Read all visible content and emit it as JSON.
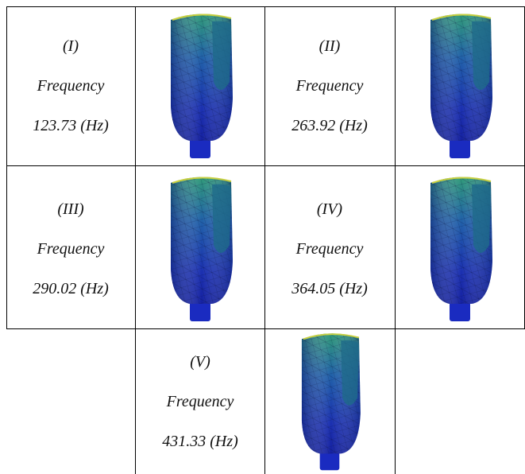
{
  "modes": [
    {
      "label": "(I)",
      "frequency_label": "Frequency",
      "frequency": "123.73 (Hz)"
    },
    {
      "label": "(II)",
      "frequency_label": "Frequency",
      "frequency": "263.92 (Hz)"
    },
    {
      "label": "(III)",
      "frequency_label": "Frequency",
      "frequency": "290.02 (Hz)"
    },
    {
      "label": "(IV)",
      "frequency_label": "Frequency",
      "frequency": "364.05 (Hz)"
    },
    {
      "label": "(V)",
      "frequency_label": "Frequency",
      "frequency": "431.33 (Hz)"
    }
  ]
}
